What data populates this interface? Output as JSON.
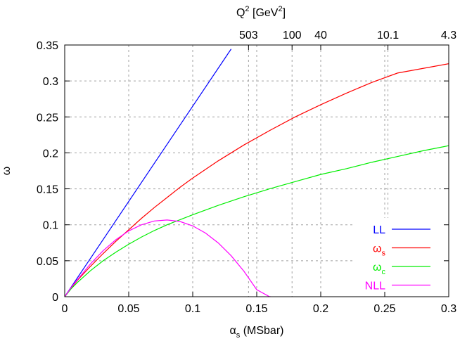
{
  "chart_data": {
    "type": "line",
    "xlabel": "α_s (MSbar)",
    "xlabel_main": "α",
    "xlabel_sub": "s",
    "xlabel_rest": " (MSbar)",
    "ylabel": "ω",
    "top_axis_label": "Q^2 [GeV^2]",
    "top_axis_label_parts": {
      "q": "Q",
      "q_sup": "2",
      "open": " [GeV",
      "gev_sup": "2",
      "close": "]"
    },
    "xlim": [
      0,
      0.3
    ],
    "ylim": [
      0,
      0.35
    ],
    "x_ticks": [
      {
        "value": 0,
        "label": "0"
      },
      {
        "value": 0.05,
        "label": "0.05"
      },
      {
        "value": 0.1,
        "label": "0.1"
      },
      {
        "value": 0.15,
        "label": "0.15"
      },
      {
        "value": 0.2,
        "label": "0.2"
      },
      {
        "value": 0.25,
        "label": "0.25"
      },
      {
        "value": 0.3,
        "label": "0.3"
      }
    ],
    "y_ticks": [
      {
        "value": 0,
        "label": "0"
      },
      {
        "value": 0.05,
        "label": "0.05"
      },
      {
        "value": 0.1,
        "label": "0.1"
      },
      {
        "value": 0.15,
        "label": "0.15"
      },
      {
        "value": 0.2,
        "label": "0.2"
      },
      {
        "value": 0.25,
        "label": "0.25"
      },
      {
        "value": 0.3,
        "label": "0.3"
      },
      {
        "value": 0.35,
        "label": "0.35"
      }
    ],
    "top_ticks": [
      {
        "alpha_s": 0.1436,
        "label": "503"
      },
      {
        "alpha_s": 0.1776,
        "label": "100"
      },
      {
        "alpha_s": 0.2,
        "label": "40"
      },
      {
        "alpha_s": 0.2525,
        "label": "10.1"
      },
      {
        "alpha_s": 0.3,
        "label": "4.3"
      }
    ],
    "grid": true,
    "legend_position": "bottom-right",
    "series": [
      {
        "name": "LL",
        "name_main": "LL",
        "name_sub": "",
        "color": "#0000ff",
        "x": [
          0,
          0.13
        ],
        "y": [
          0,
          0.3444
        ]
      },
      {
        "name": "ω_s",
        "name_main": "ω",
        "name_sub": "s",
        "color": "#ff0000",
        "x": [
          0,
          0.005,
          0.01,
          0.02,
          0.03,
          0.04,
          0.05,
          0.06,
          0.07,
          0.08,
          0.09,
          0.1,
          0.12,
          0.14,
          0.16,
          0.18,
          0.2,
          0.22,
          0.24,
          0.26,
          0.28,
          0.3
        ],
        "y": [
          0,
          0.012,
          0.023,
          0.042,
          0.06,
          0.077,
          0.093,
          0.109,
          0.124,
          0.138,
          0.152,
          0.165,
          0.189,
          0.211,
          0.231,
          0.25,
          0.267,
          0.283,
          0.298,
          0.311,
          0.3175,
          0.324
        ]
      },
      {
        "name": "ω_c",
        "name_main": "ω",
        "name_sub": "c",
        "color": "#00ee00",
        "x": [
          0,
          0.005,
          0.01,
          0.02,
          0.03,
          0.04,
          0.05,
          0.06,
          0.07,
          0.08,
          0.09,
          0.1,
          0.12,
          0.14,
          0.16,
          0.18,
          0.2,
          0.22,
          0.24,
          0.26,
          0.28,
          0.3
        ],
        "y": [
          0,
          0.011,
          0.02,
          0.036,
          0.05,
          0.062,
          0.073,
          0.083,
          0.092,
          0.1,
          0.107,
          0.114,
          0.127,
          0.139,
          0.15,
          0.16,
          0.17,
          0.178,
          0.187,
          0.195,
          0.203,
          0.21
        ]
      },
      {
        "name": "NLL",
        "name_main": "NLL",
        "name_sub": "",
        "color": "#ff00ff",
        "x": [
          0,
          0.005,
          0.01,
          0.02,
          0.03,
          0.04,
          0.05,
          0.06,
          0.07,
          0.08,
          0.09,
          0.1,
          0.11,
          0.12,
          0.13,
          0.14,
          0.15,
          0.16,
          0.161
        ],
        "y": [
          0,
          0.0127,
          0.0238,
          0.0454,
          0.064,
          0.0793,
          0.0915,
          0.1,
          0.1053,
          0.1067,
          0.1046,
          0.0985,
          0.0885,
          0.0747,
          0.057,
          0.0354,
          0.0098,
          0.0,
          0.0
        ]
      }
    ]
  }
}
